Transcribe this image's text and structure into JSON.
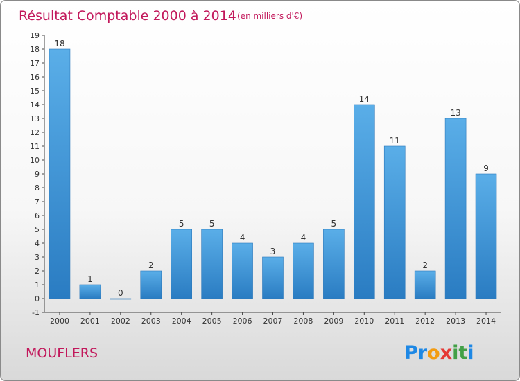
{
  "chart_data": {
    "type": "bar",
    "title": "Résultat Comptable 2000 à 2014",
    "subtitle": "(en milliers d'€)",
    "categories": [
      "2000",
      "2001",
      "2002",
      "2003",
      "2004",
      "2005",
      "2006",
      "2007",
      "2008",
      "2009",
      "2010",
      "2011",
      "2012",
      "2013",
      "2014"
    ],
    "values": [
      18,
      1,
      0,
      2,
      5,
      5,
      4,
      3,
      4,
      5,
      14,
      11,
      2,
      13,
      9
    ],
    "y_ticks": [
      -1,
      0,
      1,
      2,
      3,
      4,
      5,
      6,
      7,
      8,
      9,
      10,
      11,
      12,
      13,
      14,
      15,
      16,
      17,
      18,
      19
    ],
    "ylim": [
      -1,
      19
    ],
    "xlabel": "",
    "ylabel": "",
    "grid": false,
    "bar_color": "#3d8fd6"
  },
  "footer": {
    "commune": "MOUFLERS",
    "logo_letters": [
      "P",
      "r",
      "o",
      "x",
      "i",
      "t",
      "i"
    ]
  },
  "colors": {
    "title": "#c2185b",
    "logo": [
      "#1e88e5",
      "#1e88e5",
      "#f39c12",
      "#e53935",
      "#43a047",
      "#43a047",
      "#1e88e5"
    ]
  }
}
